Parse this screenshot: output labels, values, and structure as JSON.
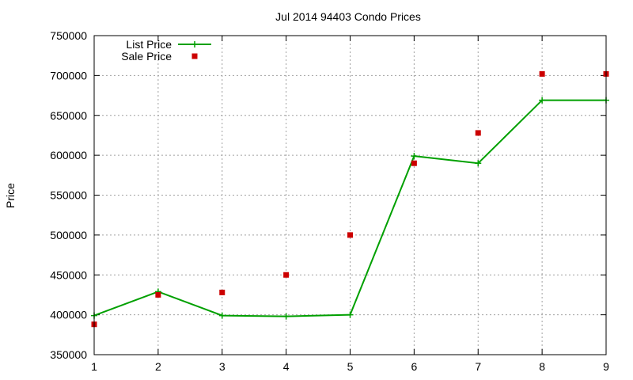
{
  "chart_data": {
    "type": "line",
    "title": "Jul 2014 94403 Condo Prices",
    "xlabel": "",
    "ylabel": "Price",
    "xlim": [
      1,
      9
    ],
    "ylim": [
      350000,
      750000
    ],
    "x_ticks": [
      1,
      2,
      3,
      4,
      5,
      6,
      7,
      8,
      9
    ],
    "y_ticks": [
      350000,
      400000,
      450000,
      500000,
      550000,
      600000,
      650000,
      700000,
      750000
    ],
    "grid": true,
    "legend_position": "top-left",
    "series": [
      {
        "name": "List Price",
        "style": "line-with-cross-markers",
        "color": "#00a000",
        "x": [
          1,
          2,
          3,
          4,
          5,
          6,
          7,
          8,
          9
        ],
        "values": [
          399000,
          429000,
          399000,
          398000,
          400000,
          599000,
          590000,
          669000,
          669000
        ]
      },
      {
        "name": "Sale Price",
        "style": "square-markers",
        "color": "#cc0000",
        "x": [
          1,
          2,
          3,
          4,
          5,
          6,
          7,
          8,
          9
        ],
        "values": [
          388000,
          425000,
          428000,
          450000,
          500000,
          590000,
          628000,
          702000,
          702000
        ]
      }
    ]
  }
}
